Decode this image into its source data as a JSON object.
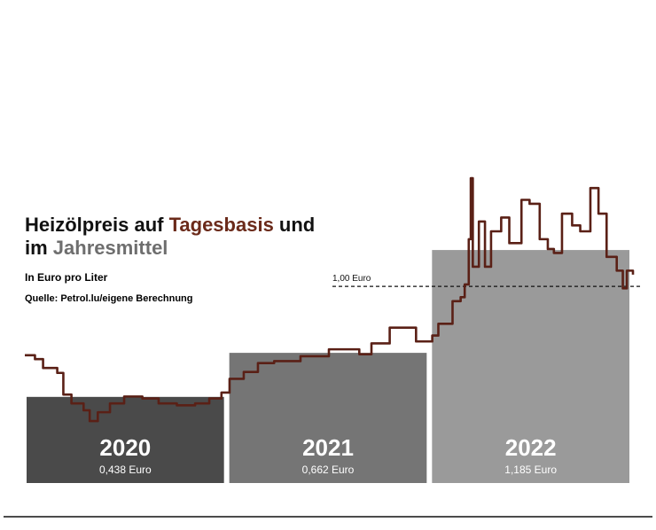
{
  "chart_data": {
    "type": "bar-line",
    "title_parts": [
      "Heizölpreis auf ",
      "Tagesbasis",
      " und",
      "im ",
      "Jahresmittel"
    ],
    "title_colors": [
      "#111111",
      "#6b2a1a",
      "#111111",
      "#111111",
      "#6e6e6e"
    ],
    "subtitle": "In Euro pro Liter",
    "source": "Quelle: Petrol.lu/eigene Berechnung",
    "categories": [
      "2020",
      "2021",
      "2022"
    ],
    "values": [
      0.438,
      0.662,
      1.185
    ],
    "value_labels": [
      "0,438 Euro",
      "0,662 Euro",
      "1,185 Euro"
    ],
    "colors": [
      "#4a4a4a",
      "#757575",
      "#9a9a9a"
    ],
    "line": {
      "color": "#5a2016",
      "x": [
        2020.0,
        2020.05,
        2020.09,
        2020.16,
        2020.19,
        2020.23,
        2020.29,
        2020.32,
        2020.36,
        2020.42,
        2020.49,
        2020.58,
        2020.66,
        2020.75,
        2020.84,
        2020.91,
        2020.97,
        2021.01,
        2021.08,
        2021.15,
        2021.23,
        2021.36,
        2021.5,
        2021.58,
        2021.65,
        2021.71,
        2021.8,
        2021.89,
        2021.93,
        2022.01,
        2022.04,
        2022.11,
        2022.15,
        2022.17,
        2022.19,
        2022.2,
        2022.21,
        2022.24,
        2022.27,
        2022.3,
        2022.35,
        2022.39,
        2022.45,
        2022.49,
        2022.54,
        2022.58,
        2022.61,
        2022.65,
        2022.7,
        2022.74,
        2022.79,
        2022.83,
        2022.87,
        2022.92,
        2022.95,
        2022.97,
        2023.0
      ],
      "values": [
        0.65,
        0.63,
        0.585,
        0.56,
        0.45,
        0.405,
        0.37,
        0.315,
        0.36,
        0.405,
        0.44,
        0.43,
        0.405,
        0.395,
        0.405,
        0.43,
        0.46,
        0.53,
        0.565,
        0.61,
        0.62,
        0.645,
        0.68,
        0.68,
        0.655,
        0.71,
        0.79,
        0.79,
        0.72,
        0.75,
        0.81,
        0.925,
        0.945,
        1.01,
        1.24,
        1.55,
        1.1,
        1.33,
        1.1,
        1.28,
        1.35,
        1.22,
        1.44,
        1.42,
        1.24,
        1.19,
        1.17,
        1.37,
        1.31,
        1.28,
        1.5,
        1.37,
        1.15,
        1.08,
        0.99,
        1.08,
        1.06
      ]
    },
    "xlim": [
      2020,
      2023
    ],
    "ylim": [
      0,
      1.6
    ],
    "reference_line": {
      "value": 1.0,
      "label": "1,00 Euro"
    }
  }
}
